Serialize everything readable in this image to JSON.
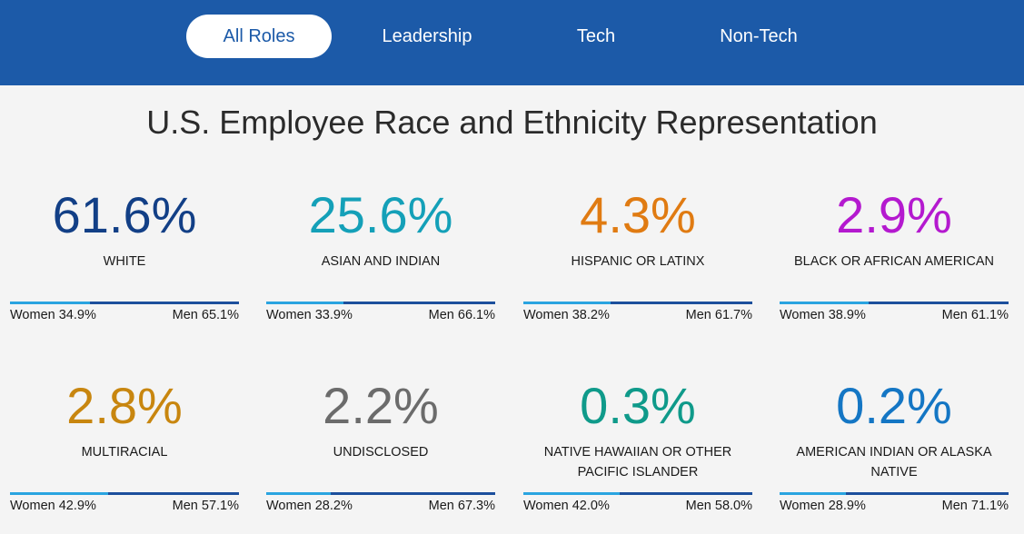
{
  "tabs": [
    {
      "label": "All Roles",
      "active": true
    },
    {
      "label": "Leadership",
      "active": false
    },
    {
      "label": "Tech",
      "active": false
    },
    {
      "label": "Non-Tech",
      "active": false
    }
  ],
  "title": "U.S. Employee Race and Ethnicity Representation",
  "women_label": "Women",
  "men_label": "Men",
  "cards": [
    {
      "pct": "61.6%",
      "label": "WHITE",
      "label2": "",
      "color": "#123f86",
      "women_pct": "34.9%",
      "men_pct": "65.1%",
      "women_frac": 0.349
    },
    {
      "pct": "25.6%",
      "label": "ASIAN AND INDIAN",
      "label2": "",
      "color": "#14a0b8",
      "women_pct": "33.9%",
      "men_pct": "66.1%",
      "women_frac": 0.339
    },
    {
      "pct": "4.3%",
      "label": "HISPANIC OR LATINX",
      "label2": "",
      "color": "#e07b12",
      "women_pct": "38.2%",
      "men_pct": "61.7%",
      "women_frac": 0.382
    },
    {
      "pct": "2.9%",
      "label": "BLACK OR AFRICAN AMERICAN",
      "label2": "",
      "color": "#b419cf",
      "women_pct": "38.9%",
      "men_pct": "61.1%",
      "women_frac": 0.389
    },
    {
      "pct": "2.8%",
      "label": "MULTIRACIAL",
      "label2": "",
      "color": "#c8860f",
      "women_pct": "42.9%",
      "men_pct": "57.1%",
      "women_frac": 0.429
    },
    {
      "pct": "2.2%",
      "label": "UNDISCLOSED",
      "label2": "",
      "color": "#6b6b6b",
      "women_pct": "28.2%",
      "men_pct": "67.3%",
      "women_frac": 0.282
    },
    {
      "pct": "0.3%",
      "label": "NATIVE HAWAIIAN OR OTHER",
      "label2": "PACIFIC ISLANDER",
      "color": "#0f9a8a",
      "women_pct": "42.0%",
      "men_pct": "58.0%",
      "women_frac": 0.42
    },
    {
      "pct": "0.2%",
      "label": "AMERICAN INDIAN OR ALASKA",
      "label2": "NATIVE",
      "color": "#1476c4",
      "women_pct": "28.9%",
      "men_pct": "71.1%",
      "women_frac": 0.289
    }
  ]
}
